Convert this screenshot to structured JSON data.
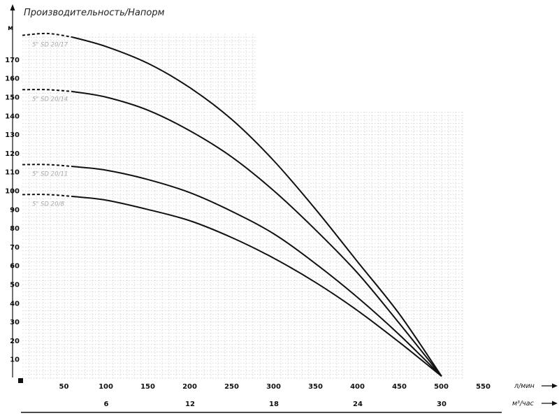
{
  "chart_data": {
    "type": "line",
    "title": "Производительность/Напорм",
    "ylabel": "м",
    "x_unit_label": "л/мин",
    "x2_unit_label": "м³/час",
    "ylim": [
      0,
      180
    ],
    "xlim": [
      0,
      550
    ],
    "y_ticks": [
      "10",
      "20",
      "30",
      "40",
      "50",
      "60",
      "70",
      "80",
      "90",
      "100",
      "110",
      "120",
      "130",
      "140",
      "150",
      "160",
      "170"
    ],
    "x_ticks": [
      "50",
      "100",
      "150",
      "200",
      "250",
      "300",
      "350",
      "400",
      "450",
      "500",
      "550"
    ],
    "x2_ticks": [
      "6",
      "12",
      "18",
      "24",
      "30"
    ],
    "grid": true,
    "series": [
      {
        "name": "5\" SD 20/17",
        "points": [
          [
            0,
            183
          ],
          [
            30,
            184
          ],
          [
            60,
            182
          ],
          [
            100,
            177
          ],
          [
            150,
            168
          ],
          [
            200,
            155
          ],
          [
            250,
            138
          ],
          [
            300,
            116
          ],
          [
            350,
            90
          ],
          [
            400,
            62
          ],
          [
            450,
            34
          ],
          [
            500,
            1
          ]
        ]
      },
      {
        "name": "5\" SD 20/14",
        "points": [
          [
            0,
            154
          ],
          [
            30,
            154
          ],
          [
            60,
            153
          ],
          [
            100,
            150
          ],
          [
            150,
            143
          ],
          [
            200,
            132
          ],
          [
            250,
            118
          ],
          [
            300,
            100
          ],
          [
            350,
            79
          ],
          [
            400,
            56
          ],
          [
            450,
            29
          ],
          [
            500,
            1
          ]
        ]
      },
      {
        "name": "5\" SD 20/11",
        "points": [
          [
            0,
            114
          ],
          [
            30,
            114
          ],
          [
            60,
            113
          ],
          [
            100,
            111
          ],
          [
            150,
            106
          ],
          [
            200,
            99
          ],
          [
            250,
            89
          ],
          [
            300,
            77
          ],
          [
            350,
            61
          ],
          [
            400,
            43
          ],
          [
            450,
            23
          ],
          [
            500,
            1
          ]
        ]
      },
      {
        "name": "5\" SD 20/8",
        "points": [
          [
            0,
            98
          ],
          [
            30,
            98
          ],
          [
            60,
            97
          ],
          [
            100,
            95
          ],
          [
            150,
            90
          ],
          [
            200,
            84
          ],
          [
            250,
            75
          ],
          [
            300,
            64
          ],
          [
            350,
            51
          ],
          [
            400,
            36
          ],
          [
            450,
            19
          ],
          [
            500,
            1
          ]
        ]
      }
    ]
  }
}
